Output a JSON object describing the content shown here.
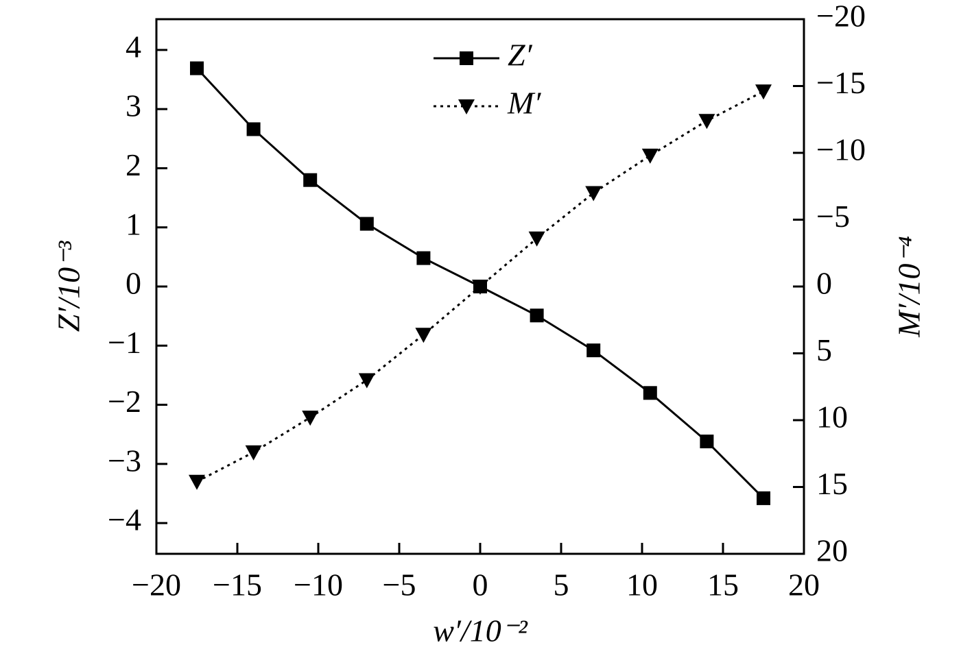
{
  "chart_data": {
    "type": "line",
    "x_label": "w′/10⁻²",
    "y_label": "Z′/10⁻³",
    "y2_label": "M′/10⁻⁴",
    "x": [
      -17.5,
      -14,
      -10.5,
      -7,
      -3.5,
      0,
      3.5,
      7,
      10.5,
      14,
      17.5
    ],
    "series": [
      {
        "name": "Z′",
        "color": "#000000",
        "line_style": "solid",
        "marker": "square",
        "values": [
          3.69,
          2.66,
          1.8,
          1.06,
          0.48,
          0,
          -0.49,
          -1.08,
          -1.8,
          -2.62,
          -3.58
        ]
      },
      {
        "name": "M′",
        "color": "#000000",
        "line_style": "dotted",
        "marker": "triangle-down",
        "axis": "y2",
        "values": [
          14.6,
          12.4,
          9.8,
          7.0,
          3.6,
          0,
          -3.6,
          -7.0,
          -9.8,
          -12.4,
          -14.6
        ]
      }
    ],
    "xlim": [
      -20,
      20
    ],
    "xticks": [
      {
        "value": -20,
        "label": "−20"
      },
      {
        "value": -15,
        "label": "−15"
      },
      {
        "value": -10,
        "label": "−10"
      },
      {
        "value": -5,
        "label": "−5"
      },
      0,
      5,
      10,
      15,
      20
    ],
    "ylim": [
      -4.52,
      4.52
    ],
    "yticks": [
      {
        "value": -4,
        "label": "−4"
      },
      {
        "value": -3,
        "label": "−3"
      },
      {
        "value": -2,
        "label": "−2"
      },
      {
        "value": -1,
        "label": "−1"
      },
      0,
      1,
      2,
      3,
      4
    ],
    "y2lim": [
      -20,
      20
    ],
    "y2_reversed": true,
    "y2ticks": [
      {
        "value": -20,
        "label": "−20"
      },
      {
        "value": -15,
        "label": "−15"
      },
      {
        "value": -10,
        "label": "−10"
      },
      {
        "value": -5,
        "label": "−5"
      },
      0,
      5,
      10,
      15,
      20
    ],
    "grid": false,
    "legend": "upper center"
  }
}
